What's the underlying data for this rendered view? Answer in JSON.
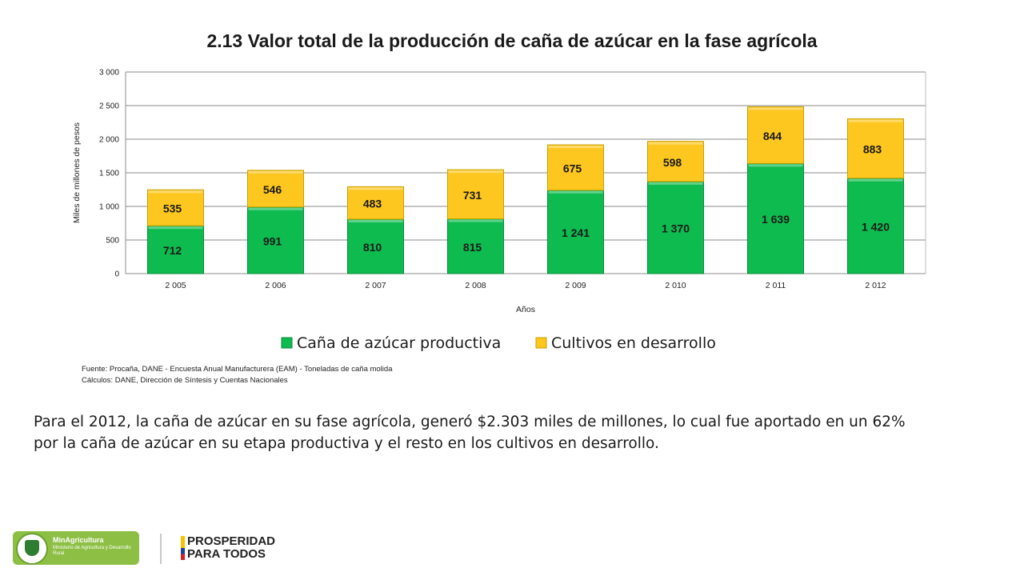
{
  "title": "2.13 Valor total de la producción de caña de azúcar en la fase agrícola",
  "chart_data": {
    "type": "bar",
    "stacked": true,
    "categories": [
      "2 005",
      "2 006",
      "2 007",
      "2 008",
      "2 009",
      "2 010",
      "2 011",
      "2 012"
    ],
    "series": [
      {
        "name": "Caña de azúcar productiva",
        "values": [
          712,
          991,
          810,
          815,
          1241,
          1370,
          1639,
          1420
        ],
        "labels": [
          "712",
          "991",
          "810",
          "815",
          "1 241",
          "1 370",
          "1 639",
          "1 420"
        ],
        "color": "#0dbb4f"
      },
      {
        "name": "Cultivos en desarrollo",
        "values": [
          535,
          546,
          483,
          731,
          675,
          598,
          844,
          883
        ],
        "labels": [
          "535",
          "546",
          "483",
          "731",
          "675",
          "598",
          "844",
          "883"
        ],
        "color": "#fdc71f"
      }
    ],
    "xlabel": "Años",
    "ylabel": "Miles de millones de pesos",
    "ylim": [
      0,
      3000
    ],
    "yticks": [
      0,
      500,
      1000,
      1500,
      2000,
      2500,
      3000
    ],
    "ytick_labels": [
      "0",
      "500",
      "1 000",
      "1 500",
      "2 000",
      "2 500",
      "3 000"
    ],
    "grid": true,
    "legend_position": "bottom"
  },
  "source_lines": [
    "Fuente: Procaña, DANE -  Encuesta Anual Manufacturera (EAM) - Toneladas de caña molida",
    "Cálculos: DANE, Dirección de Síntesis y Cuentas Nacionales"
  ],
  "paragraph": "Para el 2012, la caña de azúcar en su fase agrícola, generó $2.303 miles de millones, lo cual fue aportado en un  62% por la caña de azúcar en su etapa productiva y el resto en los cultivos en desarrollo.",
  "footer": {
    "ministry_name": "MinAgricultura",
    "ministry_sub": "Ministerio de Agricultura y Desarrollo Rural",
    "campaign_line1": "PROSPERIDAD",
    "campaign_line2": "PARA TODOS"
  }
}
